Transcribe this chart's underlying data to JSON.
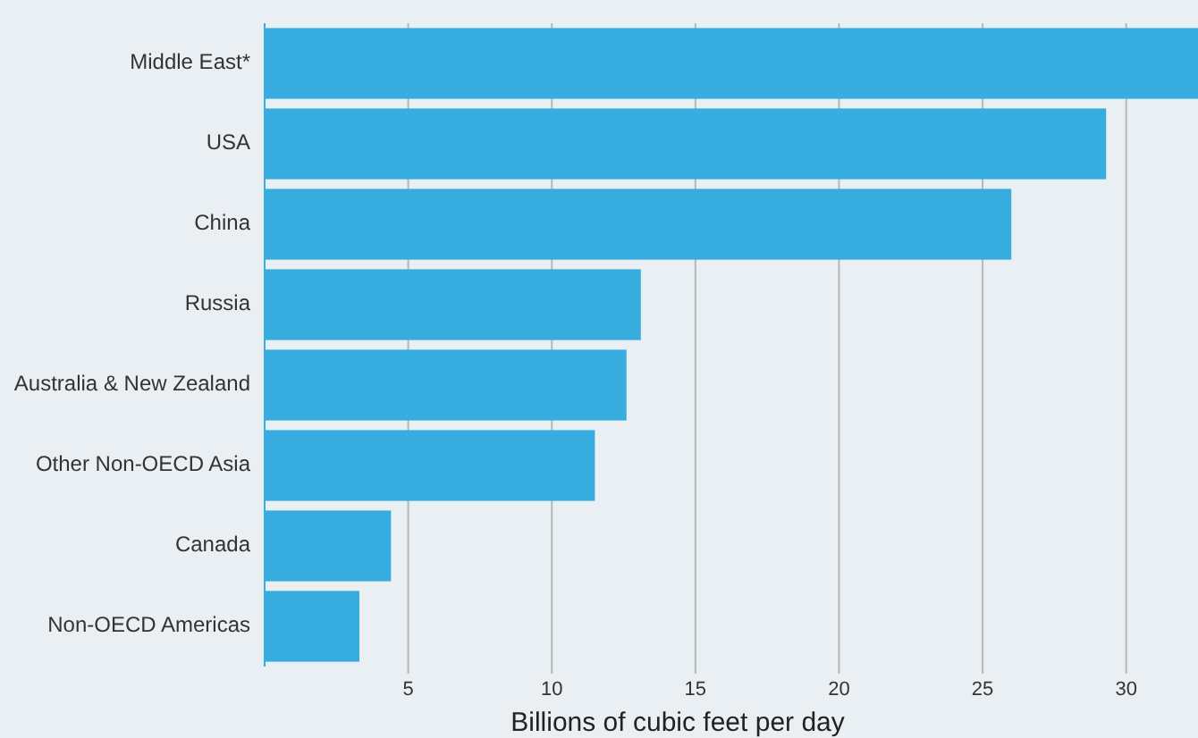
{
  "chart_data": {
    "type": "bar",
    "orientation": "horizontal",
    "xlabel": "Billions of cubic feet per day",
    "categories": [
      "Middle East*",
      "USA",
      "China",
      "Russia",
      "Australia & New Zealand",
      "Other Non-OECD Asia",
      "Canada",
      "Non-OECD Americas"
    ],
    "values": [
      32.5,
      29.3,
      26.0,
      13.1,
      12.6,
      11.5,
      4.4,
      3.3
    ],
    "color": "#36acdf",
    "xlim": [
      0,
      32.5
    ],
    "xticks": [
      5,
      10,
      15,
      20,
      25,
      30
    ],
    "grid": "x"
  }
}
